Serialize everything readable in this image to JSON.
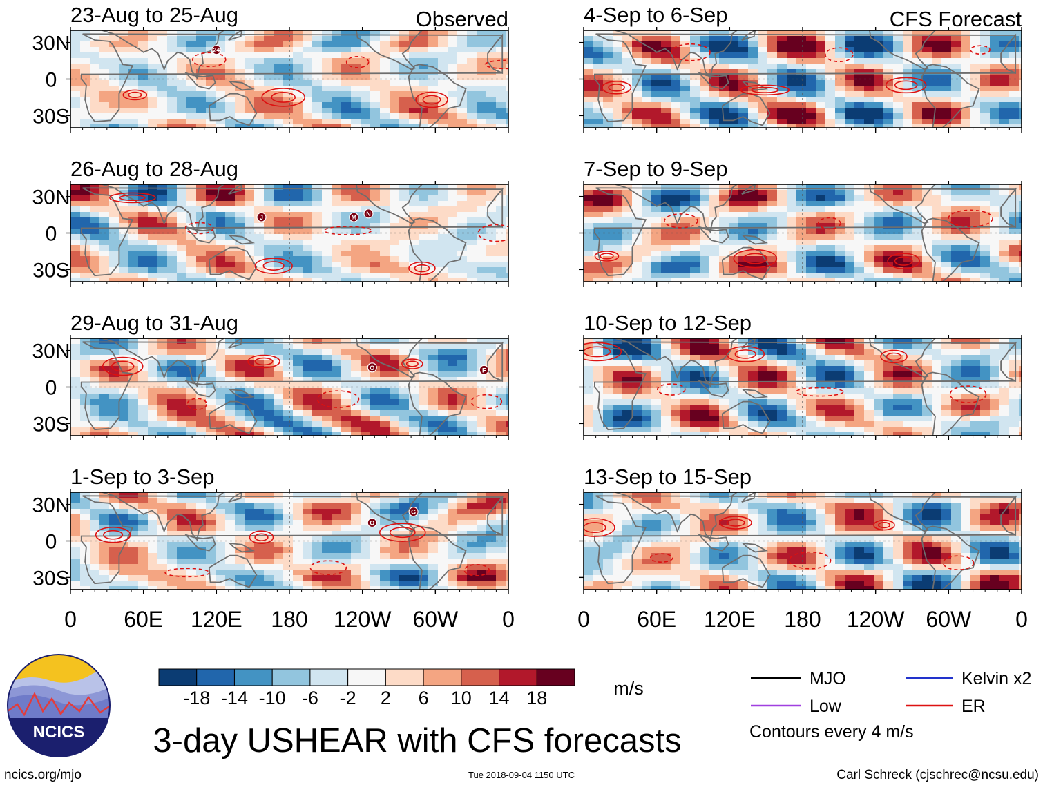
{
  "figure": {
    "title": "3-day USHEAR with CFS forecasts",
    "footer_left": "ncics.org/mjo",
    "footer_center": "Tue 2018-09-04 1150 UTC",
    "footer_right": "Carl Schreck (cjschrec@ncsu.edu)",
    "logo_text": "NCICS"
  },
  "chart_data": {
    "type": "heatmap",
    "variable": "USHEAR",
    "units": "m/s",
    "column_titles": [
      "Observed",
      "CFS Forecast"
    ],
    "x_ticks": [
      "0",
      "60E",
      "120E",
      "180",
      "120W",
      "60W",
      "0"
    ],
    "y_ticks": [
      "30N",
      "0",
      "30S"
    ],
    "xlim": [
      0,
      360
    ],
    "ylim": [
      -40,
      40
    ],
    "panels": [
      {
        "label": "23-Aug to 25-Aug",
        "column": "Observed",
        "storms": [
          {
            "id": "24",
            "lon": 120,
            "lat": 24
          }
        ]
      },
      {
        "label": "26-Aug to 28-Aug",
        "column": "Observed",
        "storms": [
          {
            "id": "J",
            "lon": 157,
            "lat": 13
          },
          {
            "id": "M",
            "lon": 233,
            "lat": 13
          },
          {
            "id": "N",
            "lon": 245,
            "lat": 16
          }
        ]
      },
      {
        "label": "29-Aug to 31-Aug",
        "column": "Observed",
        "storms": [
          {
            "id": "O",
            "lon": 248,
            "lat": 16
          },
          {
            "id": "F",
            "lon": 340,
            "lat": 14
          }
        ]
      },
      {
        "label": "1-Sep to 3-Sep",
        "column": "Observed",
        "storms": [
          {
            "id": "O",
            "lon": 248,
            "lat": 15
          },
          {
            "id": "G",
            "lon": 282,
            "lat": 24
          }
        ]
      },
      {
        "label": "4-Sep to 6-Sep",
        "column": "CFS Forecast",
        "storms": []
      },
      {
        "label": "7-Sep to 9-Sep",
        "column": "CFS Forecast",
        "storms": []
      },
      {
        "label": "10-Sep to 12-Sep",
        "column": "CFS Forecast",
        "storms": []
      },
      {
        "label": "13-Sep to 15-Sep",
        "column": "CFS Forecast",
        "storms": []
      }
    ],
    "colorbar": {
      "ticks": [
        "-18",
        "-14",
        "-10",
        "-6",
        "-2",
        "2",
        "6",
        "10",
        "14",
        "18"
      ],
      "colors": [
        "#0b3c73",
        "#2166ac",
        "#4393c3",
        "#92c5de",
        "#d1e5f0",
        "#f7f7f7",
        "#fddbc7",
        "#f4a582",
        "#d6604d",
        "#b2182b",
        "#67001f"
      ],
      "units": "m/s"
    },
    "legend": [
      {
        "label": "MJO",
        "color": "#000000"
      },
      {
        "label": "Kelvin x2",
        "color": "#2233cc"
      },
      {
        "label": "Low",
        "color": "#a040e0"
      },
      {
        "label": "ER",
        "color": "#dd1111"
      }
    ],
    "contour_note": "Contours every 4 m/s"
  }
}
